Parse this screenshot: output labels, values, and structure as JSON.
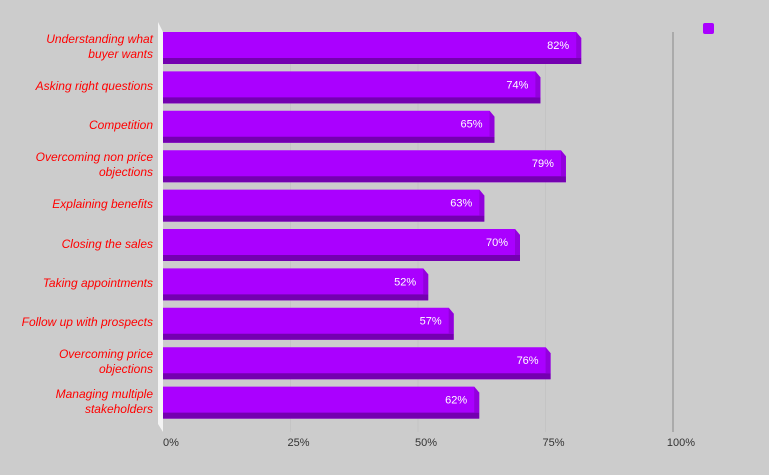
{
  "chart_data": {
    "type": "bar",
    "orientation": "horizontal",
    "categories": [
      "Understanding what buyer wants",
      "Asking right questions",
      "Competition",
      "Overcoming non price objections",
      "Explaining benefits",
      "Closing the sales",
      "Taking appointments",
      "Follow up with prospects",
      "Overcoming price objections",
      "Managing multiple stakeholders"
    ],
    "values": [
      82,
      74,
      65,
      79,
      63,
      70,
      52,
      57,
      76,
      62
    ],
    "value_labels": [
      "82%",
      "74%",
      "65%",
      "79%",
      "63%",
      "70%",
      "52%",
      "57%",
      "76%",
      "62%"
    ],
    "color": "#aa00ff",
    "xlim": [
      0,
      100
    ],
    "xticks": [
      {
        "value": 0,
        "label": "0%"
      },
      {
        "value": 25,
        "label": "25%"
      },
      {
        "value": 50,
        "label": "50%"
      },
      {
        "value": 75,
        "label": "75%"
      },
      {
        "value": 100,
        "label": "100%"
      }
    ],
    "grid": true,
    "legend": "top-right"
  }
}
